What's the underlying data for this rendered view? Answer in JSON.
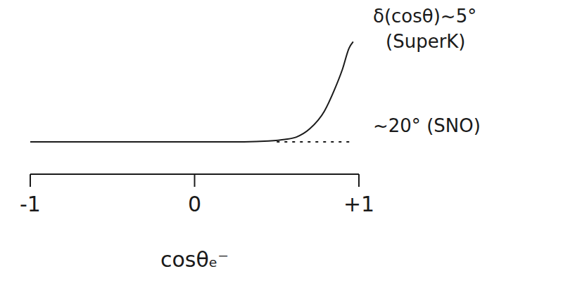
{
  "chart_data": {
    "type": "line",
    "x_label": "cosθₑ⁻",
    "xlim": [
      -1,
      1
    ],
    "xticks": [
      -1,
      0,
      {
        "value": 1,
        "label": "+1"
      }
    ],
    "ylim": [
      0,
      10
    ],
    "tick_labels": "x",
    "grid": false,
    "color": "#1a1a1a",
    "annotations": [
      "δ(cosθ)~5°",
      "(SuperK)",
      "~20° (SNO)"
    ],
    "series": [
      {
        "x": [
          -1,
          -0.5,
          0,
          0.3,
          0.45,
          0.55,
          0.62,
          0.7,
          0.79,
          0.85,
          0.9,
          0.94,
          0.965
        ],
        "values": [
          2,
          2,
          2,
          2,
          2.05,
          2.15,
          2.3,
          2.8,
          3.9,
          5.2,
          6.5,
          7.8,
          8.2
        ],
        "line_style": "solid"
      },
      {
        "x": [
          0.5,
          0.97
        ],
        "values": [
          2,
          2
        ],
        "line_style": "dashed"
      }
    ]
  }
}
